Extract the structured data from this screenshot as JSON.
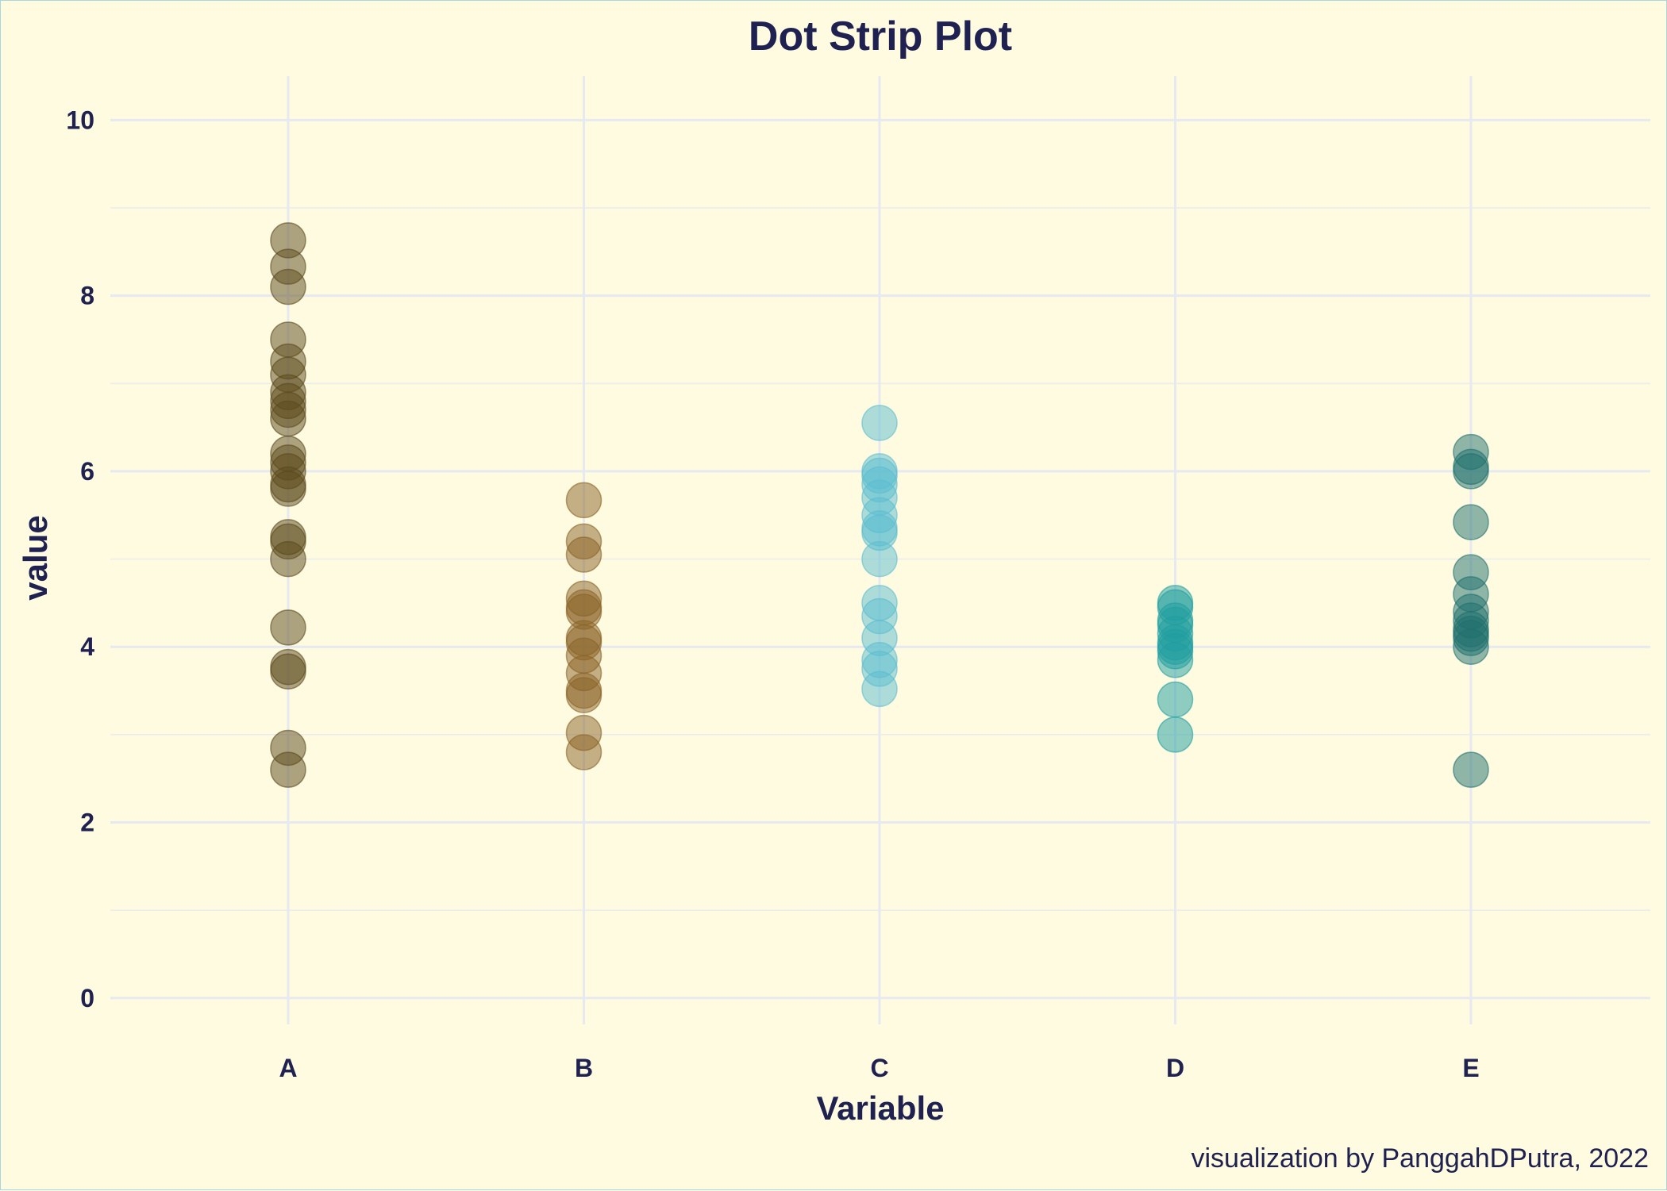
{
  "chart_data": {
    "type": "scatter",
    "subtype": "strip",
    "title": "Dot Strip Plot",
    "xlabel": "Variable",
    "ylabel": "value",
    "caption": "visualization by PanggahDPutra, 2022",
    "categories": [
      "A",
      "B",
      "C",
      "D",
      "E"
    ],
    "ylim": [
      -0.3,
      10.5
    ],
    "yticks": [
      0,
      2,
      4,
      6,
      8,
      10
    ],
    "grid": true,
    "legend": "none",
    "colors": {
      "background": "#fefbe0",
      "text": "#1f2150",
      "grid": "#e6eaf0",
      "border": "#a9d6e0"
    },
    "series": [
      {
        "category": "A",
        "color": "#5c4a1c",
        "values": [
          8.63,
          8.33,
          8.1,
          7.5,
          7.25,
          7.1,
          6.9,
          6.8,
          6.7,
          6.6,
          6.2,
          6.1,
          6.0,
          5.85,
          5.8,
          5.25,
          5.2,
          5.0,
          4.22,
          3.77,
          3.72,
          2.85,
          2.6
        ]
      },
      {
        "category": "B",
        "color": "#8a6226",
        "values": [
          5.67,
          5.2,
          5.05,
          4.55,
          4.45,
          4.4,
          4.1,
          4.05,
          3.9,
          3.7,
          3.5,
          3.45,
          3.02,
          2.8
        ]
      },
      {
        "category": "C",
        "color": "#5bbdd0",
        "values": [
          6.55,
          6.0,
          5.95,
          5.85,
          5.7,
          5.5,
          5.35,
          5.3,
          5.0,
          4.5,
          4.35,
          4.1,
          3.85,
          3.75,
          3.52
        ]
      },
      {
        "category": "D",
        "color": "#1f9ea0",
        "values": [
          4.5,
          4.45,
          4.3,
          4.25,
          4.15,
          4.05,
          4.0,
          3.95,
          3.85,
          3.4,
          3.0
        ]
      },
      {
        "category": "E",
        "color": "#20706e",
        "values": [
          6.22,
          6.05,
          6.0,
          5.42,
          4.85,
          4.6,
          4.4,
          4.3,
          4.2,
          4.15,
          4.1,
          4.0,
          2.6
        ]
      }
    ]
  }
}
